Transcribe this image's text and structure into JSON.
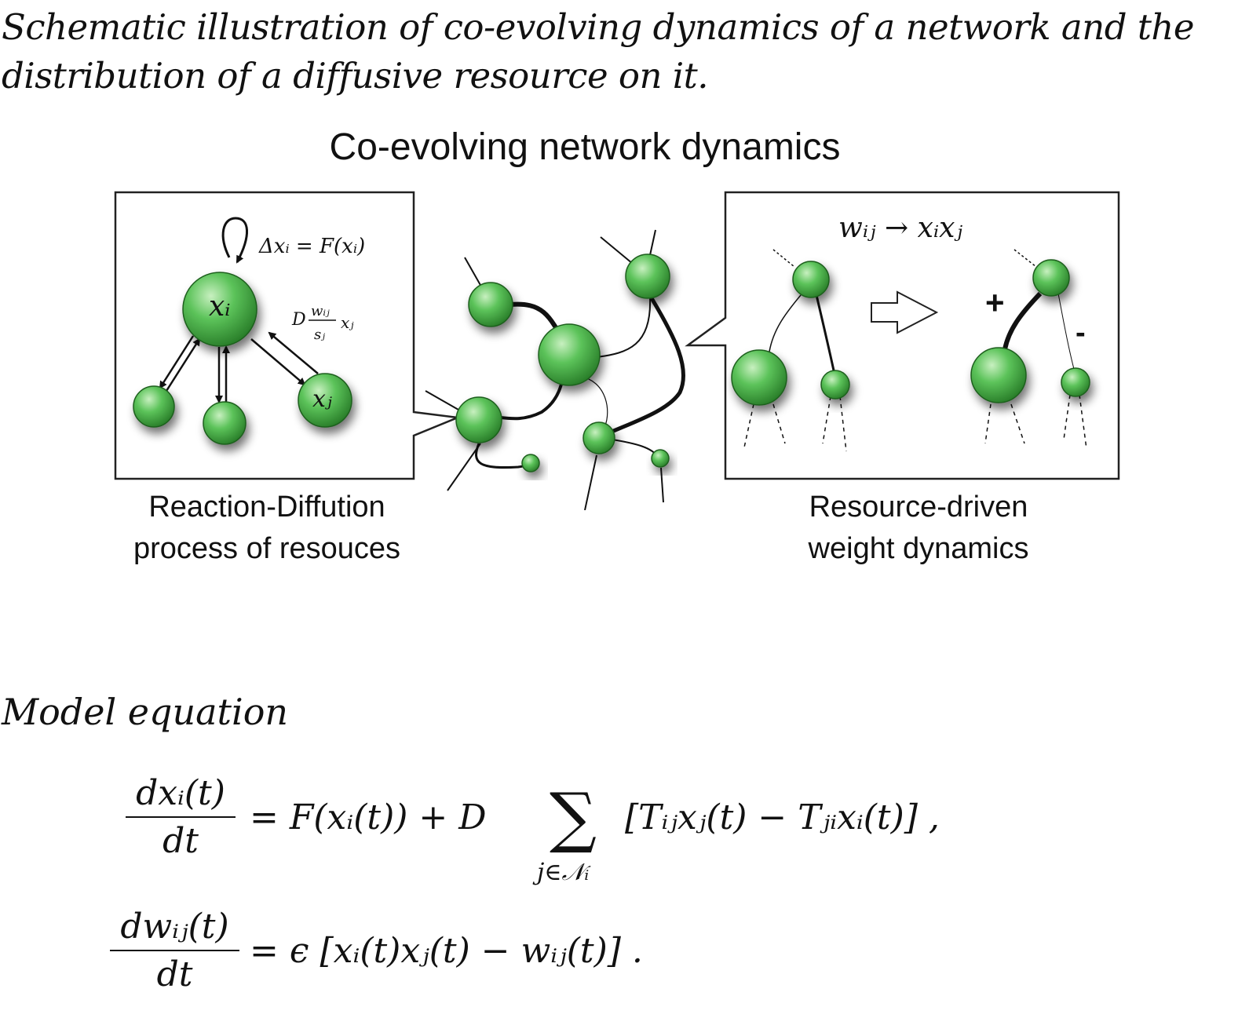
{
  "caption": {
    "line1": "Schematic illustration of co-evolving dynamics of a network and the",
    "line2": "distribution of a diffusive resource on it."
  },
  "diagram": {
    "title": "Co-evolving network dynamics",
    "left_panel": {
      "reaction_eq": "Δxᵢ = F(xᵢ)",
      "node_i_label": "xᵢ",
      "node_j_label": "xⱼ",
      "flow_D": "D",
      "flow_num": "wᵢⱼ",
      "flow_den": "sⱼ",
      "flow_x": "xⱼ",
      "label_line1": "Reaction-Diffution",
      "label_line2": "process of resouces"
    },
    "right_panel": {
      "rule": "wᵢⱼ → xᵢxⱼ",
      "plus": "+",
      "minus": "-",
      "label_line1": "Resource-driven",
      "label_line2": "weight dynamics"
    },
    "node_color": "#4caf50"
  },
  "model": {
    "title": "Model equation",
    "eq1": {
      "lhs_num": "dxᵢ(t)",
      "lhs_den": "dt",
      "rhs_a": "= F(xᵢ(t)) + D",
      "sum_sub": "j∈𝒩ᵢ",
      "rhs_b": "[Tᵢⱼxⱼ(t) − Tⱼᵢxᵢ(t)] ,"
    },
    "eq2": {
      "lhs_num": "dwᵢⱼ(t)",
      "lhs_den": "dt",
      "rhs": "= ϵ [xᵢ(t)xⱼ(t) − wᵢⱼ(t)] ."
    }
  }
}
